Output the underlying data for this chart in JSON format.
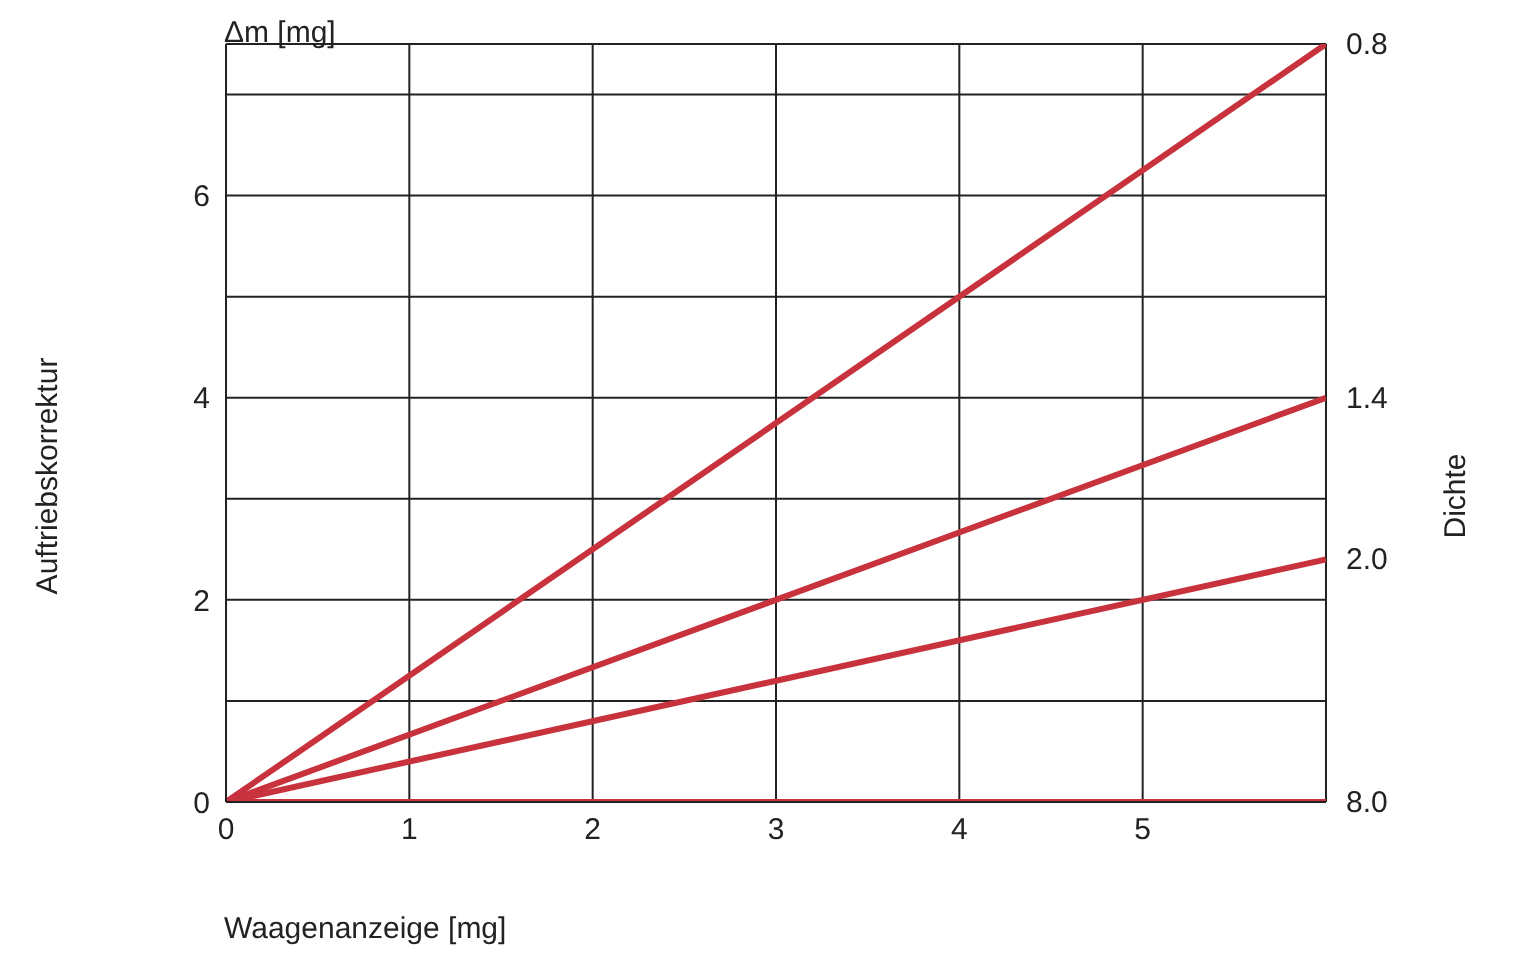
{
  "chart_data": {
    "type": "line",
    "xlabel": "Waagenanzeige [mg]",
    "ylabel": "Auftriebskorrektur",
    "legend_title": "Dichte",
    "annotations": [
      "Δm [mg]"
    ],
    "x": [
      0,
      6
    ],
    "series": [
      {
        "name": "0.8",
        "color": "#c8323c",
        "values": [
          0,
          7.5
        ]
      },
      {
        "name": "1.4",
        "color": "#c8323c",
        "values": [
          0,
          4
        ]
      },
      {
        "name": "2.0",
        "color": "#c8323c",
        "values": [
          0,
          2.4
        ]
      },
      {
        "name": "8.0",
        "color": "#c8323c",
        "values": [
          0,
          0
        ]
      }
    ],
    "xlim": [
      0,
      6
    ],
    "xticks": [
      0,
      1,
      2,
      3,
      4,
      5,
      {
        "value": 6,
        "label": null
      }
    ],
    "ylim": [
      0,
      7.5
    ],
    "yticks": [
      0,
      {
        "value": 1,
        "label": null
      },
      2,
      {
        "value": 3,
        "label": null
      },
      4,
      {
        "value": 5,
        "label": null
      },
      6,
      {
        "value": 7,
        "label": null
      }
    ],
    "grid": true,
    "legend": "right",
    "marker": "none",
    "line_style": "solid"
  }
}
